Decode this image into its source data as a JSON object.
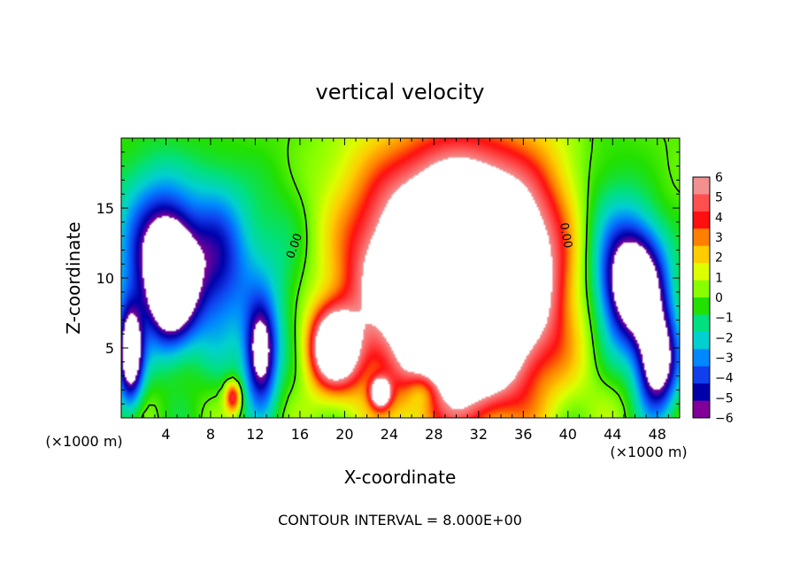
{
  "chart_data": {
    "type": "heatmap",
    "title": "vertical velocity",
    "xlabel": "X-coordinate",
    "ylabel": "Z-coordinate",
    "x_unit": "(×1000 m)",
    "x_unit_right": "(×1000 m)",
    "footer": "CONTOUR INTERVAL = 8.000E+00",
    "xlim": [
      0,
      50
    ],
    "ylim": [
      0,
      20
    ],
    "x_ticks": [
      4,
      8,
      12,
      16,
      20,
      24,
      28,
      32,
      36,
      40,
      44,
      48
    ],
    "y_ticks": [
      5,
      10,
      15
    ],
    "x_ticks_minor_step": 1,
    "y_ticks_minor_step": 1,
    "colorbar": {
      "labels": [
        "6",
        "5",
        "4",
        "3",
        "2",
        "1",
        "0",
        "−1",
        "−2",
        "−3",
        "−4",
        "−5",
        "−6"
      ],
      "range": [
        -6,
        6
      ],
      "colors_top_to_bottom": [
        "#f29090",
        "#ff5050",
        "#ff1010",
        "#ff8000",
        "#ffcc00",
        "#ddff00",
        "#88ff00",
        "#22e000",
        "#00e080",
        "#00d0d0",
        "#0088ff",
        "#1040ee",
        "#0000aa",
        "#800099"
      ]
    },
    "contour_labels": [
      "0.00",
      "0.00"
    ],
    "contour_label_positions": [
      [
        15.8,
        12.2
      ],
      [
        39.5,
        13.0
      ]
    ],
    "contour_interval": 8.0,
    "blobs": [
      {
        "x": 30.5,
        "z": 10.5,
        "sx": 6.5,
        "sz": 6.0,
        "w": 14
      },
      {
        "x": 31.0,
        "z": 7.5,
        "sx": 3.0,
        "sz": 4.5,
        "w": 6
      },
      {
        "x": 19.0,
        "z": 5.0,
        "sx": 1.6,
        "sz": 2.0,
        "w": 9
      },
      {
        "x": 23.2,
        "z": 1.8,
        "sx": 0.6,
        "sz": 0.7,
        "w": 8
      },
      {
        "x": 10.0,
        "z": 1.5,
        "sx": 0.5,
        "sz": 0.8,
        "w": 5
      },
      {
        "x": 26.5,
        "z": 10.5,
        "sx": 2.5,
        "sz": 1.5,
        "w": 2.5
      },
      {
        "x": 4.5,
        "z": 9.5,
        "sx": 1.5,
        "sz": 3.0,
        "w": -8
      },
      {
        "x": 3.0,
        "z": 12.0,
        "sx": 2.5,
        "sz": 4.0,
        "w": -5
      },
      {
        "x": 8.5,
        "z": 11.0,
        "sx": 2.0,
        "sz": 4.0,
        "w": -4.5
      },
      {
        "x": 12.5,
        "z": 4.5,
        "sx": 1.0,
        "sz": 2.5,
        "w": -7
      },
      {
        "x": 46.0,
        "z": 9.5,
        "sx": 2.0,
        "sz": 3.0,
        "w": -9
      },
      {
        "x": 48.0,
        "z": 4.0,
        "sx": 1.3,
        "sz": 2.5,
        "w": -8
      },
      {
        "x": 0.8,
        "z": 4.5,
        "sx": 0.8,
        "sz": 2.5,
        "w": -8
      },
      {
        "x": 14.0,
        "z": 10.0,
        "sx": 3.0,
        "sz": 5.0,
        "w": -2
      },
      {
        "x": 27.0,
        "z": 2.0,
        "sx": 1.0,
        "sz": 1.0,
        "w": -2.5
      },
      {
        "x": 43.0,
        "z": 12.0,
        "sx": 2.5,
        "sz": 5.0,
        "w": -3
      }
    ]
  }
}
